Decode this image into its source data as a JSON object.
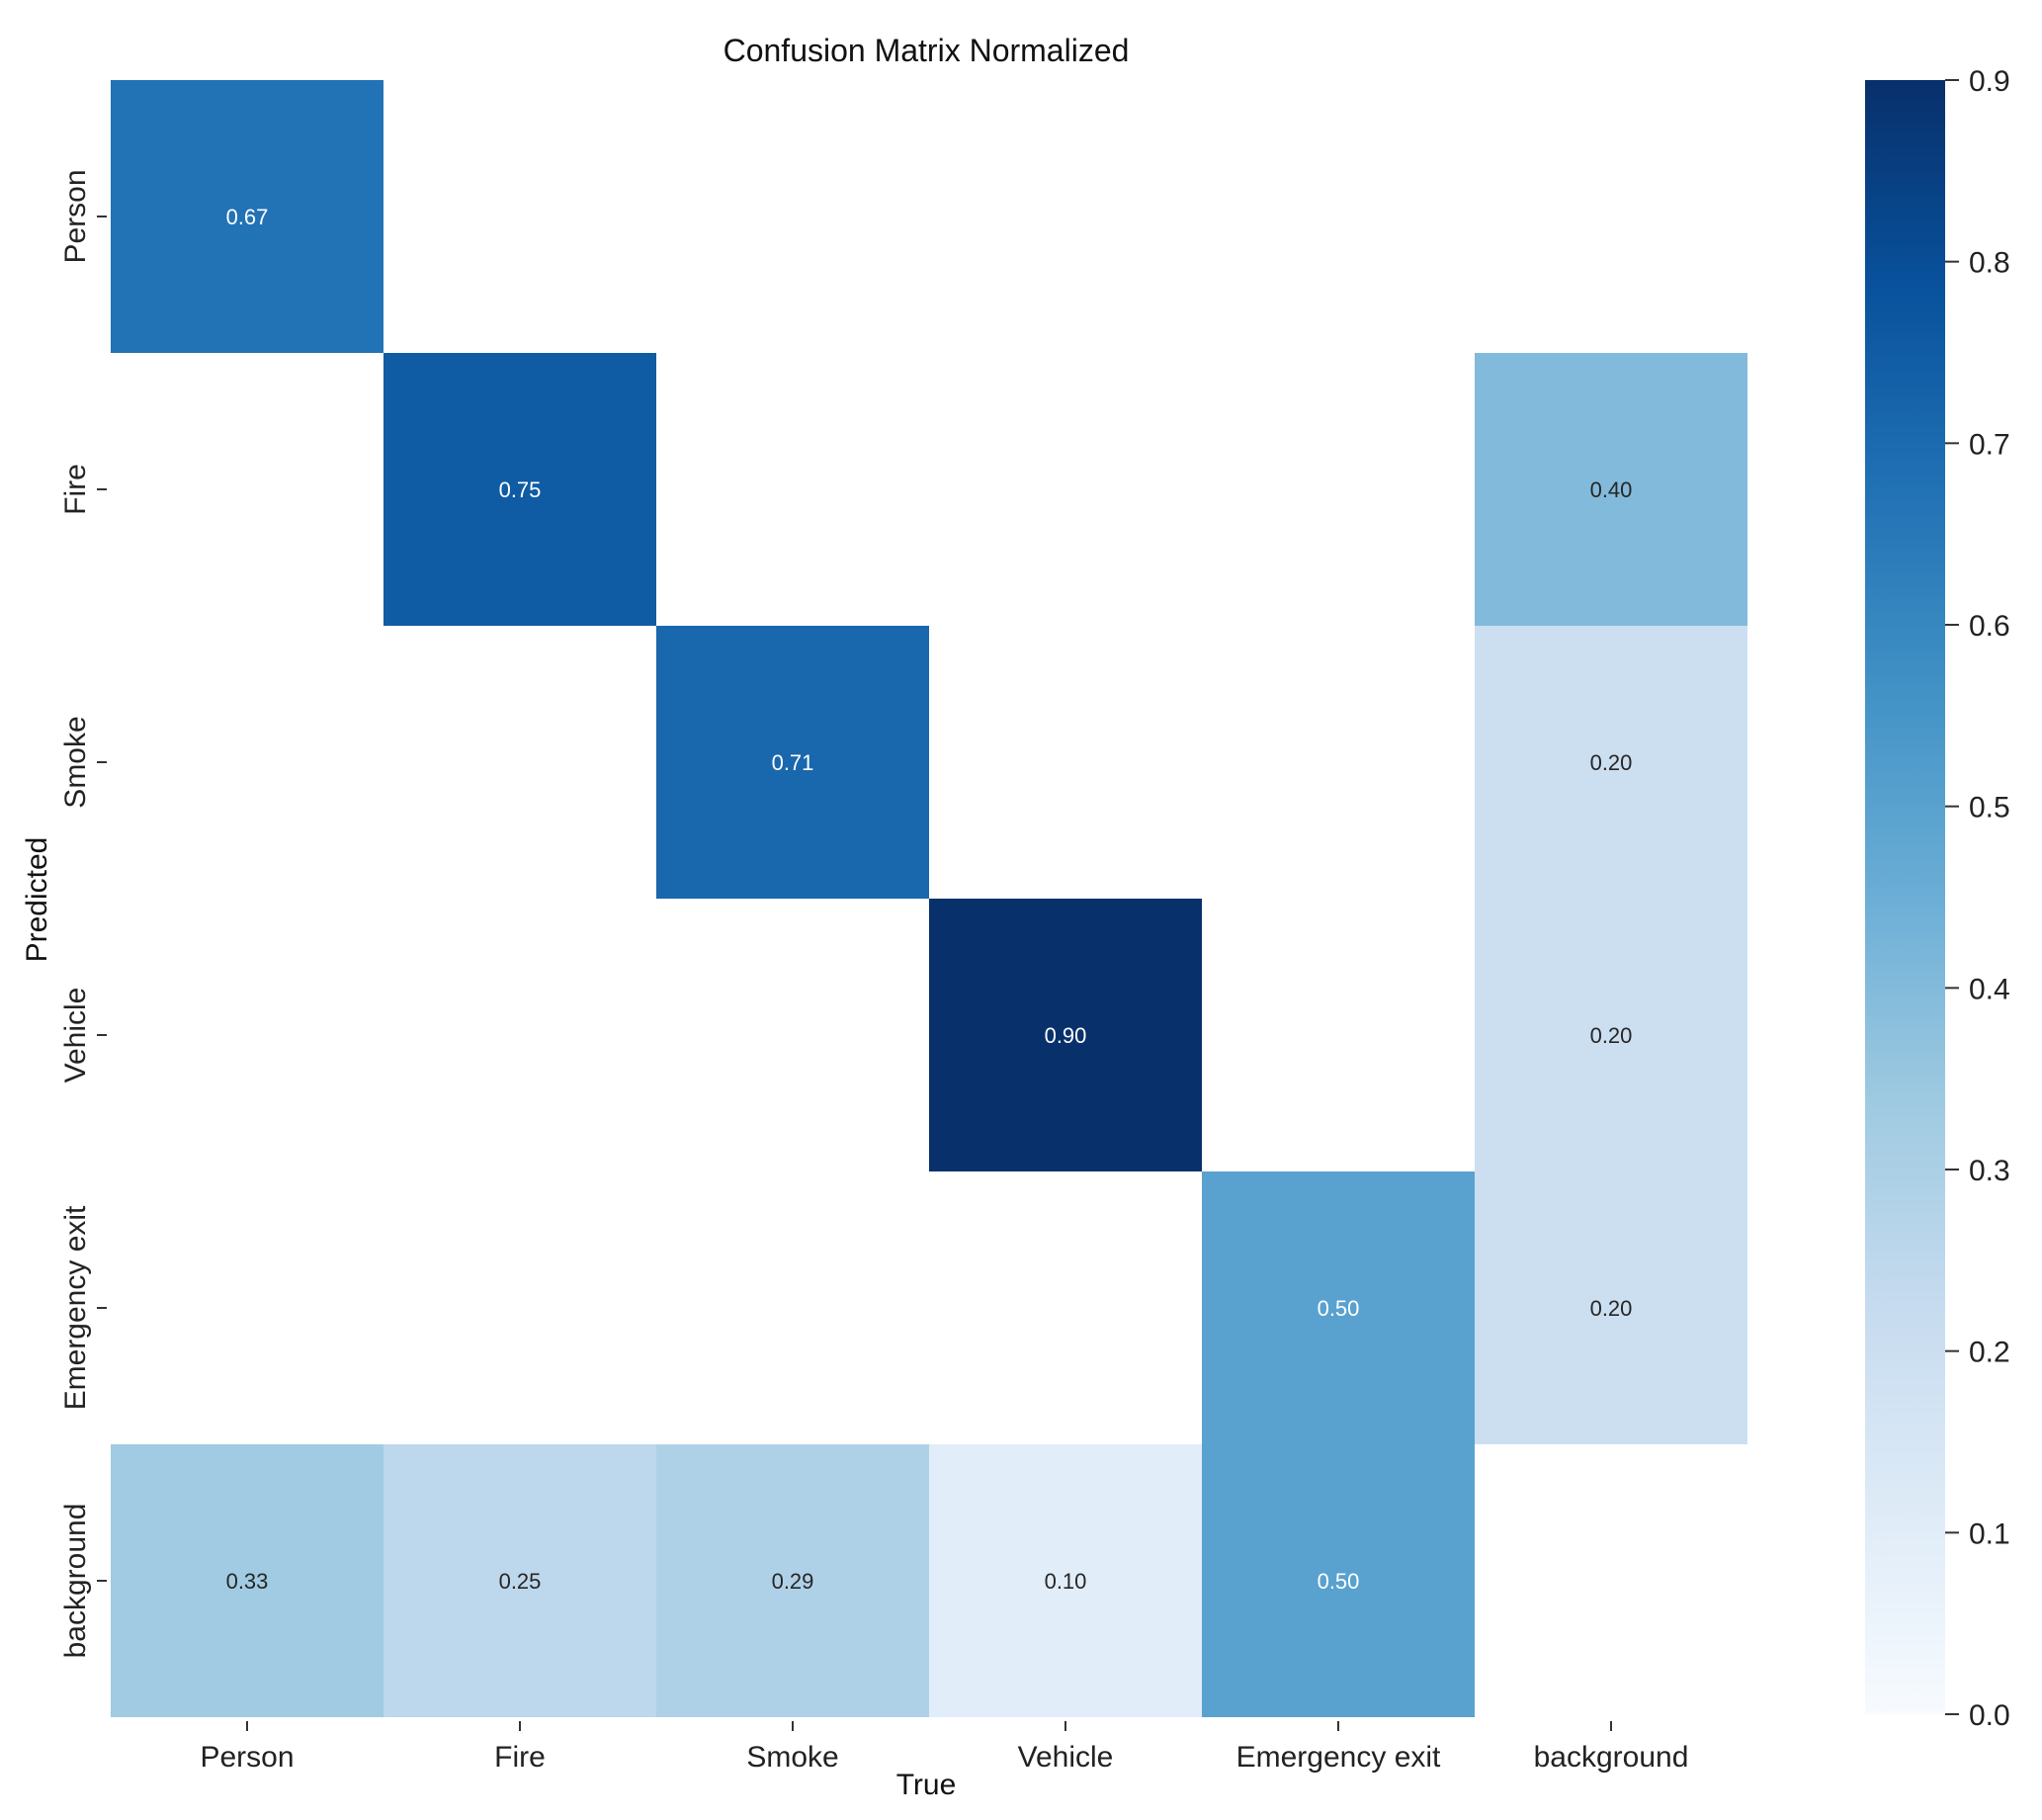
{
  "chart_data": {
    "type": "heatmap",
    "title": "Confusion Matrix Normalized",
    "xlabel": "True",
    "ylabel": "Predicted",
    "x_categories": [
      "Person",
      "Fire",
      "Smoke",
      "Vehicle",
      "Emergency exit",
      "background"
    ],
    "y_categories": [
      "Person",
      "Fire",
      "Smoke",
      "Vehicle",
      "Emergency exit",
      "background"
    ],
    "values": [
      [
        0.67,
        null,
        null,
        null,
        null,
        null
      ],
      [
        null,
        0.75,
        null,
        null,
        null,
        0.4
      ],
      [
        null,
        null,
        0.71,
        null,
        null,
        0.2
      ],
      [
        null,
        null,
        null,
        0.9,
        null,
        0.2
      ],
      [
        null,
        null,
        null,
        null,
        0.5,
        0.2
      ],
      [
        0.33,
        0.25,
        0.29,
        0.1,
        0.5,
        null
      ]
    ],
    "colorbar": {
      "vmin": 0.0,
      "vmax": 0.9,
      "ticks": [
        "0.0",
        "0.1",
        "0.2",
        "0.3",
        "0.4",
        "0.5",
        "0.6",
        "0.7",
        "0.8",
        "0.9"
      ],
      "colormap": "Blues"
    }
  }
}
